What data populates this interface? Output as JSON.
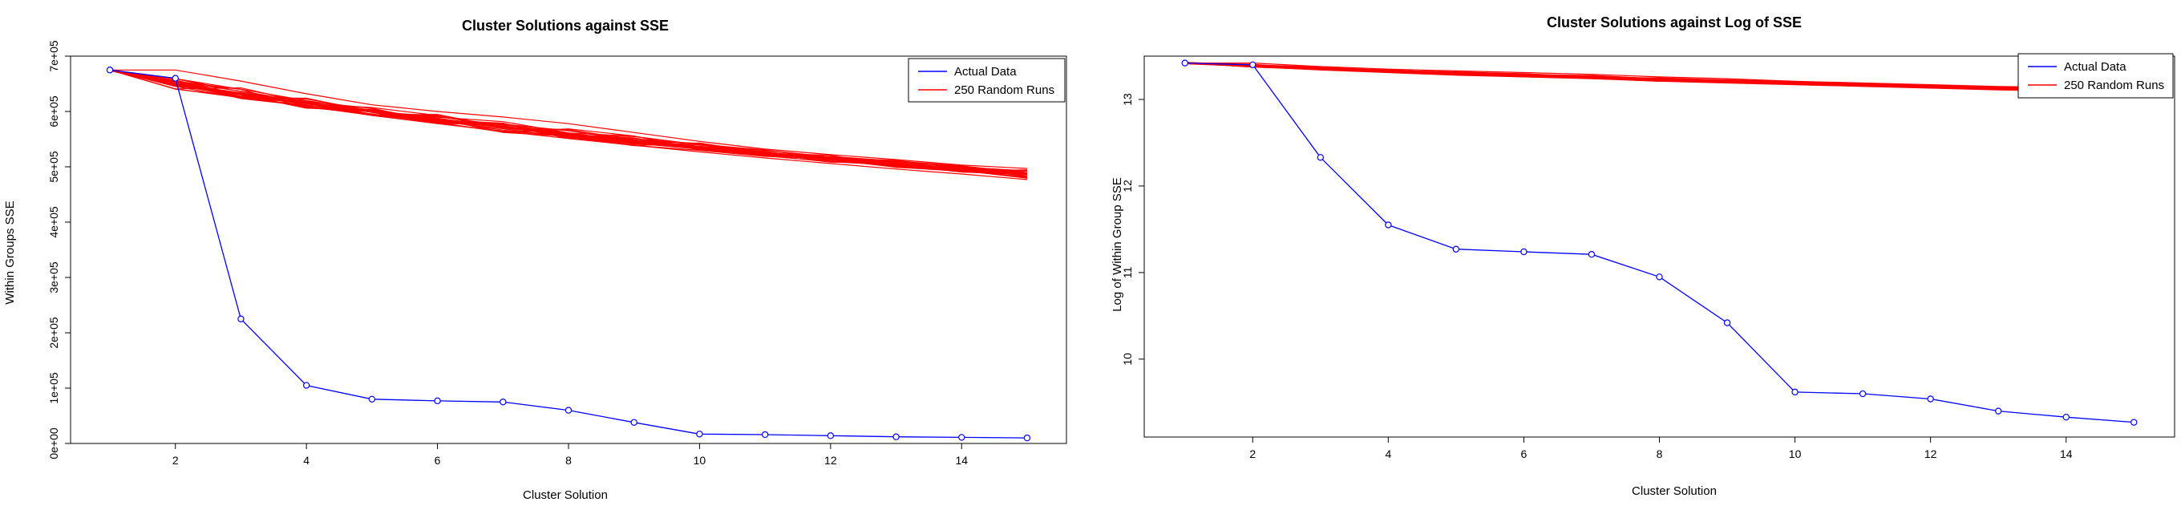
{
  "chart_data": [
    {
      "type": "line",
      "title": "Cluster Solutions against SSE",
      "xlabel": "Cluster Solution",
      "ylabel": "Within Groups SSE",
      "xlim": [
        0.4,
        15.6
      ],
      "ylim": [
        0,
        700000
      ],
      "x_ticks": [
        2,
        4,
        6,
        8,
        10,
        12,
        14
      ],
      "x_tick_labels": [
        "2",
        "4",
        "6",
        "8",
        "10",
        "12",
        "14"
      ],
      "y_ticks": [
        0,
        100000,
        200000,
        300000,
        400000,
        500000,
        600000,
        700000
      ],
      "y_tick_labels": [
        "0e+00",
        "1e+05",
        "2e+05",
        "3e+05",
        "4e+05",
        "5e+05",
        "6e+05",
        "7e+05"
      ],
      "legend": {
        "position": "top-right",
        "entries": [
          {
            "label": "Actual Data",
            "color": "#0000ff"
          },
          {
            "label": "250 Random Runs",
            "color": "#ff0000"
          }
        ]
      },
      "series": [
        {
          "name": "Actual Data",
          "color": "#0000ff",
          "markers": "circle",
          "x": [
            1,
            2,
            3,
            4,
            5,
            6,
            7,
            8,
            9,
            10,
            11,
            12,
            13,
            14,
            15
          ],
          "values": [
            675000,
            660000,
            225000,
            105000,
            80000,
            77000,
            75000,
            60000,
            38000,
            17000,
            16000,
            14000,
            12000,
            11000,
            10000
          ]
        },
        {
          "name": "250 Random Runs",
          "color": "#ff0000",
          "x": [
            1,
            2,
            3,
            4,
            5,
            6,
            7,
            8,
            9,
            10,
            11,
            12,
            13,
            14,
            15
          ],
          "values": [
            675000,
            650000,
            632000,
            615000,
            600000,
            586000,
            572000,
            559000,
            547000,
            536000,
            525000,
            515000,
            505000,
            496000,
            487000
          ],
          "spread_low": [
            675000,
            648000,
            627000,
            609000,
            593000,
            578000,
            564000,
            551000,
            539000,
            527000,
            516000,
            506000,
            496000,
            487000,
            477000
          ],
          "spread_high": [
            675000,
            675000,
            655000,
            632000,
            612000,
            600000,
            590000,
            578000,
            562000,
            546000,
            532000,
            522000,
            513000,
            503000,
            497000
          ]
        }
      ]
    },
    {
      "type": "line",
      "title": "Cluster Solutions against Log of SSE",
      "xlabel": "Cluster Solution",
      "ylabel": "Log of Within Group SSE",
      "xlim": [
        0.4,
        15.6
      ],
      "ylim": [
        9.1,
        13.5
      ],
      "x_ticks": [
        2,
        4,
        6,
        8,
        10,
        12,
        14
      ],
      "x_tick_labels": [
        "2",
        "4",
        "6",
        "8",
        "10",
        "12",
        "14"
      ],
      "y_ticks": [
        10,
        11,
        12,
        13
      ],
      "y_tick_labels": [
        "10",
        "11",
        "12",
        "13"
      ],
      "legend": {
        "position": "top-right",
        "entries": [
          {
            "label": "Actual Data",
            "color": "#0000ff"
          },
          {
            "label": "250 Random Runs",
            "color": "#ff0000"
          }
        ]
      },
      "series": [
        {
          "name": "Actual Data",
          "color": "#0000ff",
          "markers": "circle",
          "x": [
            1,
            2,
            3,
            4,
            5,
            6,
            7,
            8,
            9,
            10,
            11,
            12,
            13,
            14,
            15
          ],
          "values": [
            13.42,
            13.4,
            12.33,
            11.55,
            11.27,
            11.24,
            11.21,
            10.95,
            10.42,
            9.62,
            9.6,
            9.54,
            9.4,
            9.33,
            9.27
          ]
        },
        {
          "name": "250 Random Runs",
          "color": "#ff0000",
          "x": [
            1,
            2,
            3,
            4,
            5,
            6,
            7,
            8,
            9,
            10,
            11,
            12,
            13,
            14,
            15
          ],
          "values": [
            13.42,
            13.39,
            13.36,
            13.33,
            13.3,
            13.28,
            13.26,
            13.23,
            13.21,
            13.19,
            13.17,
            13.15,
            13.13,
            13.12,
            13.1
          ],
          "spread_low": [
            13.42,
            13.38,
            13.34,
            13.31,
            13.28,
            13.26,
            13.24,
            13.21,
            13.19,
            13.17,
            13.15,
            13.13,
            13.11,
            13.1,
            13.08
          ],
          "spread_high": [
            13.42,
            13.42,
            13.38,
            13.35,
            13.33,
            13.31,
            13.29,
            13.26,
            13.24,
            13.21,
            13.19,
            13.17,
            13.15,
            13.14,
            13.13
          ]
        }
      ]
    }
  ]
}
